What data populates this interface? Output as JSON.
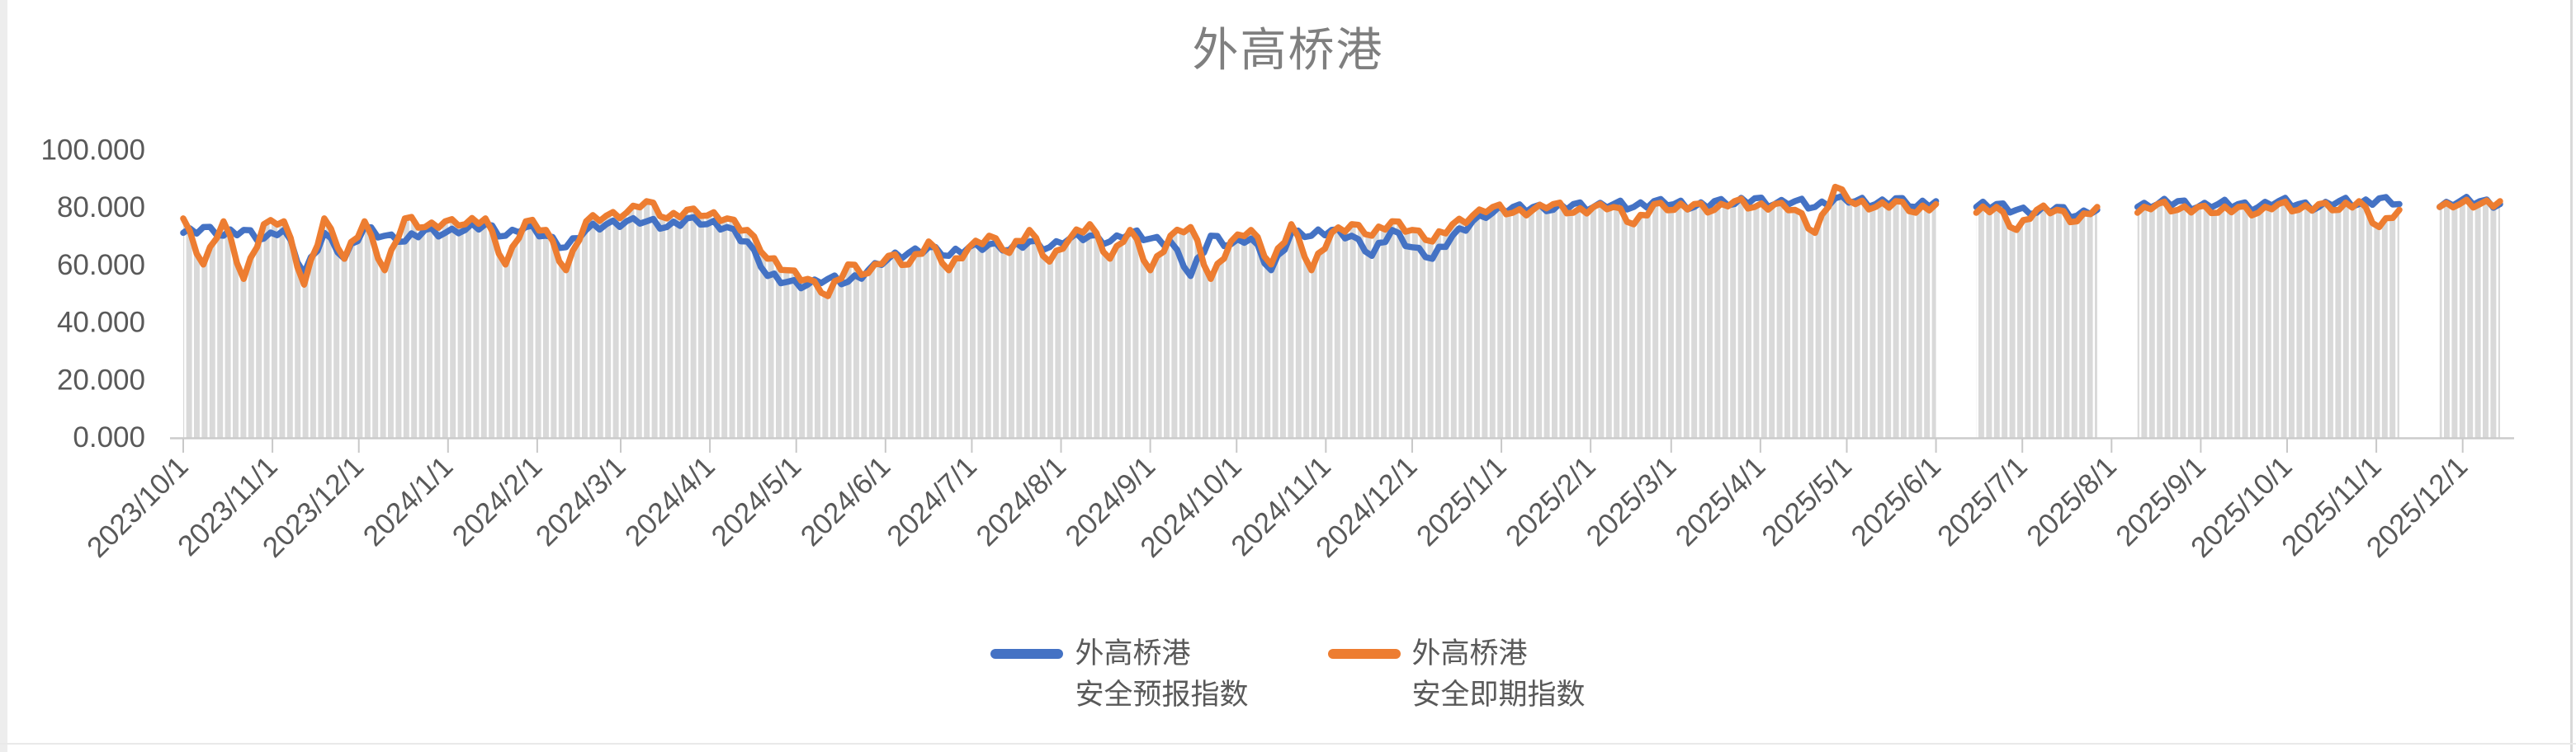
{
  "colors": {
    "series_forecast": "#4472C4",
    "series_spot": "#ED7D31",
    "columns_backdrop": "#D9D9D9",
    "axis_line": "#CCCCCC",
    "tick_mark": "#C8C8C8",
    "axis_text": "#595959",
    "title_text": "#7F7F7F"
  },
  "chart_data": {
    "type": "line",
    "title": "外高桥港",
    "grid": false,
    "legend_position": "bottom",
    "legend": [
      {
        "line1": "外高桥港",
        "line2": "安全预报指数"
      },
      {
        "line1": "外高桥港",
        "line2": "安全即期指数"
      }
    ],
    "ylim": [
      0,
      100
    ],
    "y_tick_values": [
      0,
      20,
      40,
      60,
      80,
      100
    ],
    "y_tick_labels": [
      "0.000",
      "20.000",
      "40.000",
      "60.000",
      "80.000",
      "100.000"
    ],
    "x_start": "2023/10/1",
    "x_step_days": 7,
    "x_tick_labels": [
      "2023/10/1",
      "2023/11/1",
      "2023/12/1",
      "2024/1/1",
      "2024/2/1",
      "2024/3/1",
      "2024/4/1",
      "2024/5/1",
      "2024/6/1",
      "2024/7/1",
      "2024/8/1",
      "2024/9/1",
      "2024/10/1",
      "2024/11/1",
      "2024/12/1",
      "2025/1/1",
      "2025/2/1",
      "2025/3/1",
      "2025/4/1",
      "2025/5/1",
      "2025/6/1",
      "2025/7/1",
      "2025/8/1",
      "2025/9/1",
      "2025/10/1",
      "2025/11/1",
      "2025/12/1"
    ],
    "x_tick_day_offsets": [
      0,
      31,
      61,
      92,
      123,
      152,
      183,
      213,
      244,
      274,
      305,
      336,
      366,
      397,
      427,
      458,
      489,
      517,
      548,
      578,
      609,
      639,
      670,
      701,
      731,
      762,
      792
    ],
    "data_gaps": [
      "2025/6/6-2025/6/11",
      "2025/8/5-2025/8/12",
      "2025/11/16-2025/11/19"
    ],
    "backdrop_columns": {
      "follows_series": "外高桥港 安全即期指数",
      "color": "#D9D9D9"
    },
    "series": [
      {
        "name": "外高桥港 安全预报指数",
        "color": "#4472C4",
        "values": [
          71,
          73,
          70,
          72,
          69,
          72,
          57,
          71,
          62,
          73,
          70,
          68,
          72,
          71,
          72,
          74,
          70,
          73,
          70,
          66,
          72,
          74,
          75,
          75,
          73,
          76,
          74,
          73,
          68,
          56,
          54,
          53,
          55,
          54,
          58,
          62,
          64,
          66,
          63,
          66,
          67,
          65,
          68,
          66,
          69,
          70,
          68,
          71,
          69,
          68,
          56,
          70,
          67,
          69,
          58,
          71,
          70,
          72,
          70,
          63,
          72,
          66,
          62,
          70,
          75,
          78,
          80,
          80,
          79,
          81,
          80,
          81,
          80,
          82,
          81,
          80,
          82,
          81,
          83,
          81,
          82,
          80,
          83,
          82,
          81,
          83,
          80,
          82,
          null,
          80,
          81,
          79,
          78,
          80,
          77,
          79,
          null,
          80,
          81,
          82,
          80,
          81,
          81,
          80,
          82,
          81,
          80,
          82,
          81,
          83,
          81,
          null,
          80,
          82,
          82,
          81
        ]
      },
      {
        "name": "外高桥港 安全即期指数",
        "color": "#ED7D31",
        "values": [
          76,
          60,
          75,
          55,
          74,
          75,
          53,
          76,
          62,
          75,
          58,
          76,
          73,
          75,
          74,
          76,
          60,
          75,
          72,
          58,
          75,
          77,
          78,
          82,
          76,
          79,
          77,
          76,
          72,
          62,
          58,
          55,
          49,
          60,
          57,
          63,
          60,
          68,
          58,
          66,
          70,
          64,
          72,
          61,
          69,
          74,
          62,
          72,
          58,
          70,
          73,
          55,
          68,
          72,
          60,
          74,
          58,
          71,
          74,
          70,
          75,
          72,
          68,
          74,
          77,
          80,
          78,
          79,
          81,
          78,
          80,
          80,
          74,
          81,
          79,
          81,
          79,
          82,
          80,
          81,
          79,
          71,
          87,
          81,
          80,
          82,
          78,
          81,
          null,
          78,
          80,
          72,
          79,
          79,
          75,
          80,
          null,
          78,
          81,
          79,
          80,
          78,
          80,
          78,
          81,
          79,
          81,
          79,
          82,
          73,
          79,
          null,
          80,
          81,
          81,
          82
        ]
      }
    ]
  }
}
